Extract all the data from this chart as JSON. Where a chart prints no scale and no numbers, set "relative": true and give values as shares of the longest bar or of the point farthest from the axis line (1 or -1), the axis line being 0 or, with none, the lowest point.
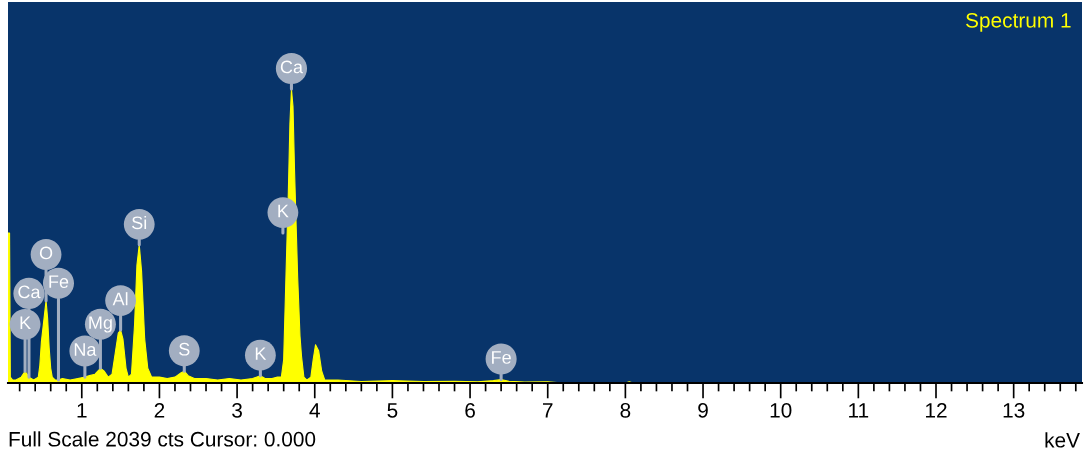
{
  "chart_data": {
    "type": "area",
    "relative": true,
    "xlabel": "keV",
    "xlim": [
      0.05,
      13.88
    ],
    "xticks": [
      {
        "value": 0.2,
        "label": null
      },
      {
        "value": 0.4,
        "label": null
      },
      {
        "value": 0.6,
        "label": null
      },
      {
        "value": 0.8,
        "label": null
      },
      1,
      {
        "value": 1.2,
        "label": null
      },
      {
        "value": 1.4,
        "label": null
      },
      {
        "value": 1.6,
        "label": null
      },
      {
        "value": 1.8,
        "label": null
      },
      2,
      {
        "value": 2.2,
        "label": null
      },
      {
        "value": 2.4,
        "label": null
      },
      {
        "value": 2.6,
        "label": null
      },
      {
        "value": 2.8,
        "label": null
      },
      3,
      {
        "value": 3.2,
        "label": null
      },
      {
        "value": 3.4,
        "label": null
      },
      {
        "value": 3.6,
        "label": null
      },
      {
        "value": 3.8,
        "label": null
      },
      4,
      {
        "value": 4.2,
        "label": null
      },
      {
        "value": 4.4,
        "label": null
      },
      {
        "value": 4.6,
        "label": null
      },
      {
        "value": 4.8,
        "label": null
      },
      5,
      {
        "value": 5.2,
        "label": null
      },
      {
        "value": 5.4,
        "label": null
      },
      {
        "value": 5.6,
        "label": null
      },
      {
        "value": 5.8,
        "label": null
      },
      6,
      {
        "value": 6.2,
        "label": null
      },
      {
        "value": 6.4,
        "label": null
      },
      {
        "value": 6.6,
        "label": null
      },
      {
        "value": 6.8,
        "label": null
      },
      7,
      {
        "value": 7.2,
        "label": null
      },
      {
        "value": 7.4,
        "label": null
      },
      {
        "value": 7.6,
        "label": null
      },
      {
        "value": 7.8,
        "label": null
      },
      8,
      {
        "value": 8.2,
        "label": null
      },
      {
        "value": 8.4,
        "label": null
      },
      {
        "value": 8.6,
        "label": null
      },
      {
        "value": 8.8,
        "label": null
      },
      9,
      {
        "value": 9.2,
        "label": null
      },
      {
        "value": 9.4,
        "label": null
      },
      {
        "value": 9.6,
        "label": null
      },
      {
        "value": 9.8,
        "label": null
      },
      10,
      {
        "value": 10.2,
        "label": null
      },
      {
        "value": 10.4,
        "label": null
      },
      {
        "value": 10.6,
        "label": null
      },
      {
        "value": 10.8,
        "label": null
      },
      11,
      {
        "value": 11.2,
        "label": null
      },
      {
        "value": 11.4,
        "label": null
      },
      {
        "value": 11.6,
        "label": null
      },
      {
        "value": 11.8,
        "label": null
      },
      12,
      {
        "value": 12.2,
        "label": null
      },
      {
        "value": 12.4,
        "label": null
      },
      {
        "value": 12.6,
        "label": null
      },
      {
        "value": 12.8,
        "label": null
      },
      13,
      {
        "value": 13.2,
        "label": null
      },
      {
        "value": 13.4,
        "label": null
      },
      {
        "value": 13.6,
        "label": null
      },
      {
        "value": 13.8,
        "label": null
      }
    ],
    "x": [
      0.05,
      0.07,
      0.08,
      0.11,
      0.15,
      0.22,
      0.27,
      0.32,
      0.38,
      0.44,
      0.46,
      0.48,
      0.54,
      0.56,
      0.58,
      0.6,
      0.62,
      0.66,
      0.7,
      0.75,
      0.85,
      0.95,
      1.04,
      1.1,
      1.17,
      1.24,
      1.29,
      1.34,
      1.39,
      1.43,
      1.47,
      1.5,
      1.53,
      1.57,
      1.6,
      1.64,
      1.68,
      1.71,
      1.74,
      1.77,
      1.81,
      1.85,
      1.9,
      2.0,
      2.1,
      2.2,
      2.28,
      2.32,
      2.37,
      2.45,
      2.6,
      2.75,
      2.9,
      3.05,
      3.2,
      3.3,
      3.36,
      3.45,
      3.52,
      3.57,
      3.6,
      3.63,
      3.66,
      3.68,
      3.7,
      3.72,
      3.74,
      3.78,
      3.81,
      3.83,
      3.86,
      3.9,
      3.95,
      3.98,
      4.01,
      4.05,
      4.09,
      4.13,
      4.3,
      4.6,
      5.0,
      5.4,
      5.8,
      6.1,
      6.3,
      6.4,
      6.5,
      6.7,
      7.0,
      7.2,
      8.0,
      8.05,
      8.1,
      13.88
    ],
    "series": [
      {
        "name": "Spectrum 1",
        "color": "#ffff00",
        "values": [
          0.51,
          0.51,
          0.02,
          0.01,
          0.01,
          0.02,
          0.04,
          0.02,
          0.01,
          0.02,
          0.06,
          0.14,
          0.28,
          0.22,
          0.12,
          0.05,
          0.02,
          0.01,
          0.01,
          0.015,
          0.01,
          0.015,
          0.02,
          0.025,
          0.03,
          0.05,
          0.04,
          0.02,
          0.03,
          0.1,
          0.17,
          0.18,
          0.15,
          0.05,
          0.02,
          0.03,
          0.2,
          0.4,
          0.47,
          0.38,
          0.15,
          0.05,
          0.02,
          0.02,
          0.015,
          0.02,
          0.035,
          0.04,
          0.025,
          0.015,
          0.015,
          0.01,
          0.015,
          0.01,
          0.015,
          0.025,
          0.015,
          0.015,
          0.02,
          0.02,
          0.08,
          0.37,
          0.65,
          0.88,
          1.0,
          0.94,
          0.72,
          0.36,
          0.16,
          0.09,
          0.02,
          0.01,
          0.02,
          0.08,
          0.13,
          0.11,
          0.04,
          0.01,
          0.01,
          0.005,
          0.008,
          0.005,
          0.006,
          0.004,
          0.008,
          0.012,
          0.006,
          0.003,
          0.004,
          0,
          0,
          0.004,
          0,
          0
        ]
      }
    ],
    "legend": "top right",
    "annotations": [
      {
        "text": "K",
        "x": 0.27,
        "y": 0.04
      },
      {
        "text": "Ca",
        "x": 0.32,
        "y": 0.02
      },
      {
        "text": "Na",
        "x": 1.04,
        "y": 0.02
      },
      {
        "text": "Mg",
        "x": 1.24,
        "y": 0.05
      },
      {
        "text": "Al",
        "x": 1.5,
        "y": 0.18
      },
      {
        "text": "Fe",
        "x": 0.7,
        "y": 0.01
      },
      {
        "text": "O",
        "x": 0.54,
        "y": 0.28
      },
      {
        "text": "Si",
        "x": 1.74,
        "y": 0.47
      },
      {
        "text": "S",
        "x": 2.32,
        "y": 0.04
      },
      {
        "text": "K",
        "x": 3.3,
        "y": 0.025
      },
      {
        "text": "K",
        "x": 3.59,
        "y": 0.51
      },
      {
        "text": "Ca",
        "x": 3.7,
        "y": 1.0
      },
      {
        "text": "Fe",
        "x": 6.4,
        "y": 0.012
      },
      "Full Scale 2039 cts Cursor: 0.000"
    ]
  }
}
